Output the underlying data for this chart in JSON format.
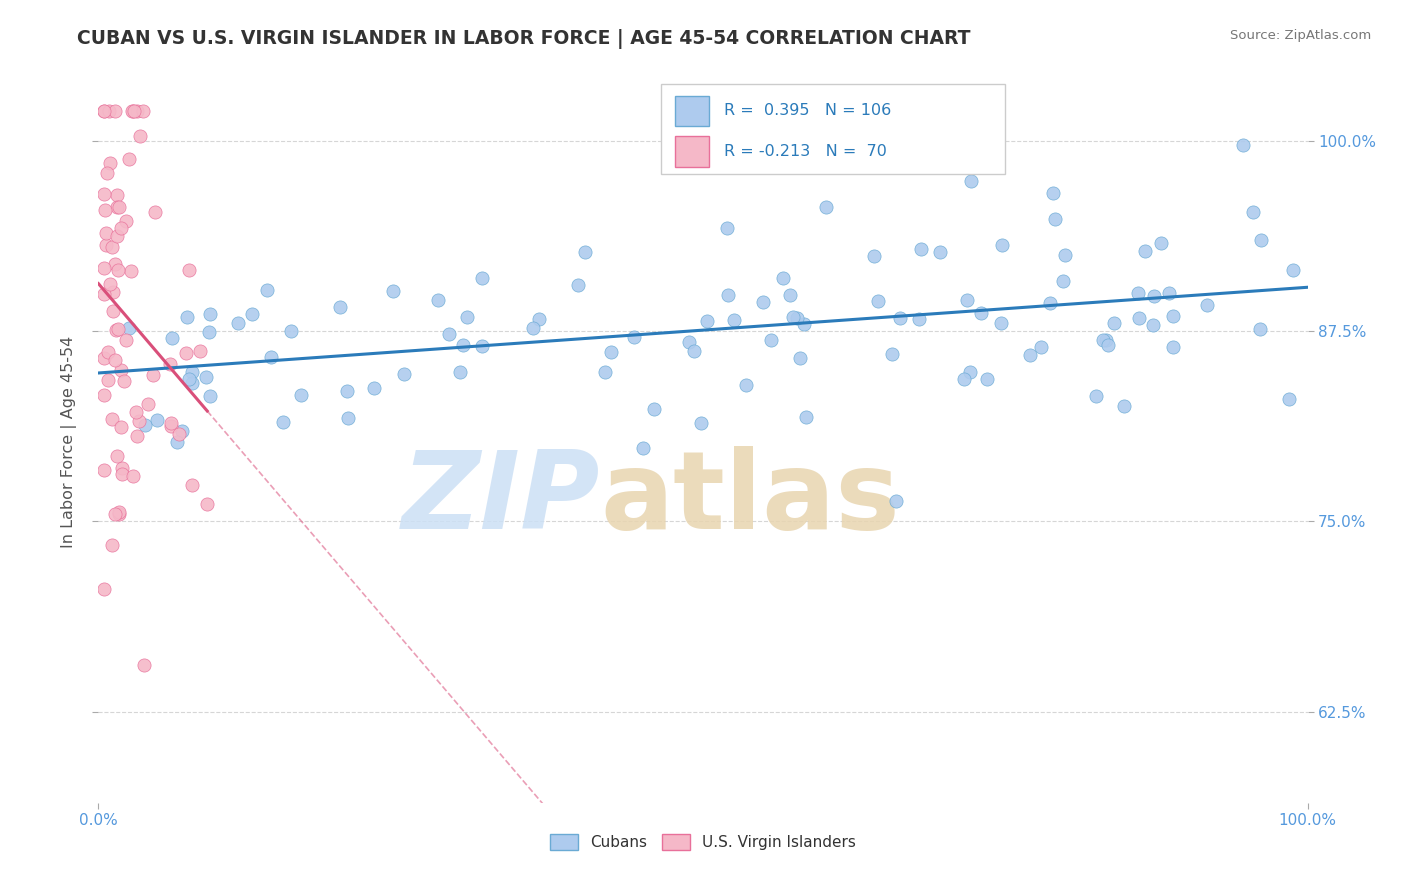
{
  "title": "CUBAN VS U.S. VIRGIN ISLANDER IN LABOR FORCE | AGE 45-54 CORRELATION CHART",
  "source": "Source: ZipAtlas.com",
  "ylabel": "In Labor Force | Age 45-54",
  "y_tick_labels_right": [
    "62.5%",
    "75.0%",
    "87.5%",
    "100.0%"
  ],
  "y_tick_values_right": [
    0.625,
    0.75,
    0.875,
    1.0
  ],
  "xlim": [
    0.0,
    1.0
  ],
  "ylim": [
    0.565,
    1.04
  ],
  "R_blue": 0.395,
  "N_blue": 106,
  "R_pink": -0.213,
  "N_pink": 70,
  "blue_color": "#aecbee",
  "blue_edge_color": "#6aaad4",
  "blue_line_color": "#2b7bba",
  "pink_color": "#f5b8c8",
  "pink_edge_color": "#e8709a",
  "pink_line_color": "#d94f7a",
  "grid_color": "#cccccc",
  "legend_blue_label": "Cubans",
  "legend_pink_label": "U.S. Virgin Islanders",
  "title_color": "#333333",
  "source_color": "#777777",
  "axis_label_color": "#555555",
  "right_tick_color": "#5599dd",
  "bottom_tick_color": "#5599dd",
  "watermark_zip_color": "#cce0f5",
  "watermark_atlas_color": "#e8d5b0"
}
